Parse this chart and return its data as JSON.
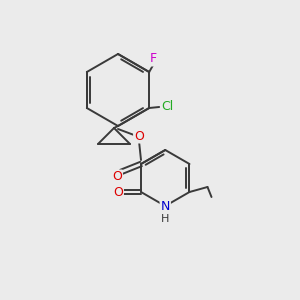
{
  "background_color": "#ebebeb",
  "bond_color": "#3a3a3a",
  "atoms": {
    "F": {
      "color": "#cc00cc"
    },
    "Cl": {
      "color": "#22aa22"
    },
    "O": {
      "color": "#dd0000"
    },
    "N": {
      "color": "#0000cc"
    },
    "H": {
      "color": "#3a3a3a"
    }
  },
  "figsize": [
    3.0,
    3.0
  ],
  "dpi": 100
}
